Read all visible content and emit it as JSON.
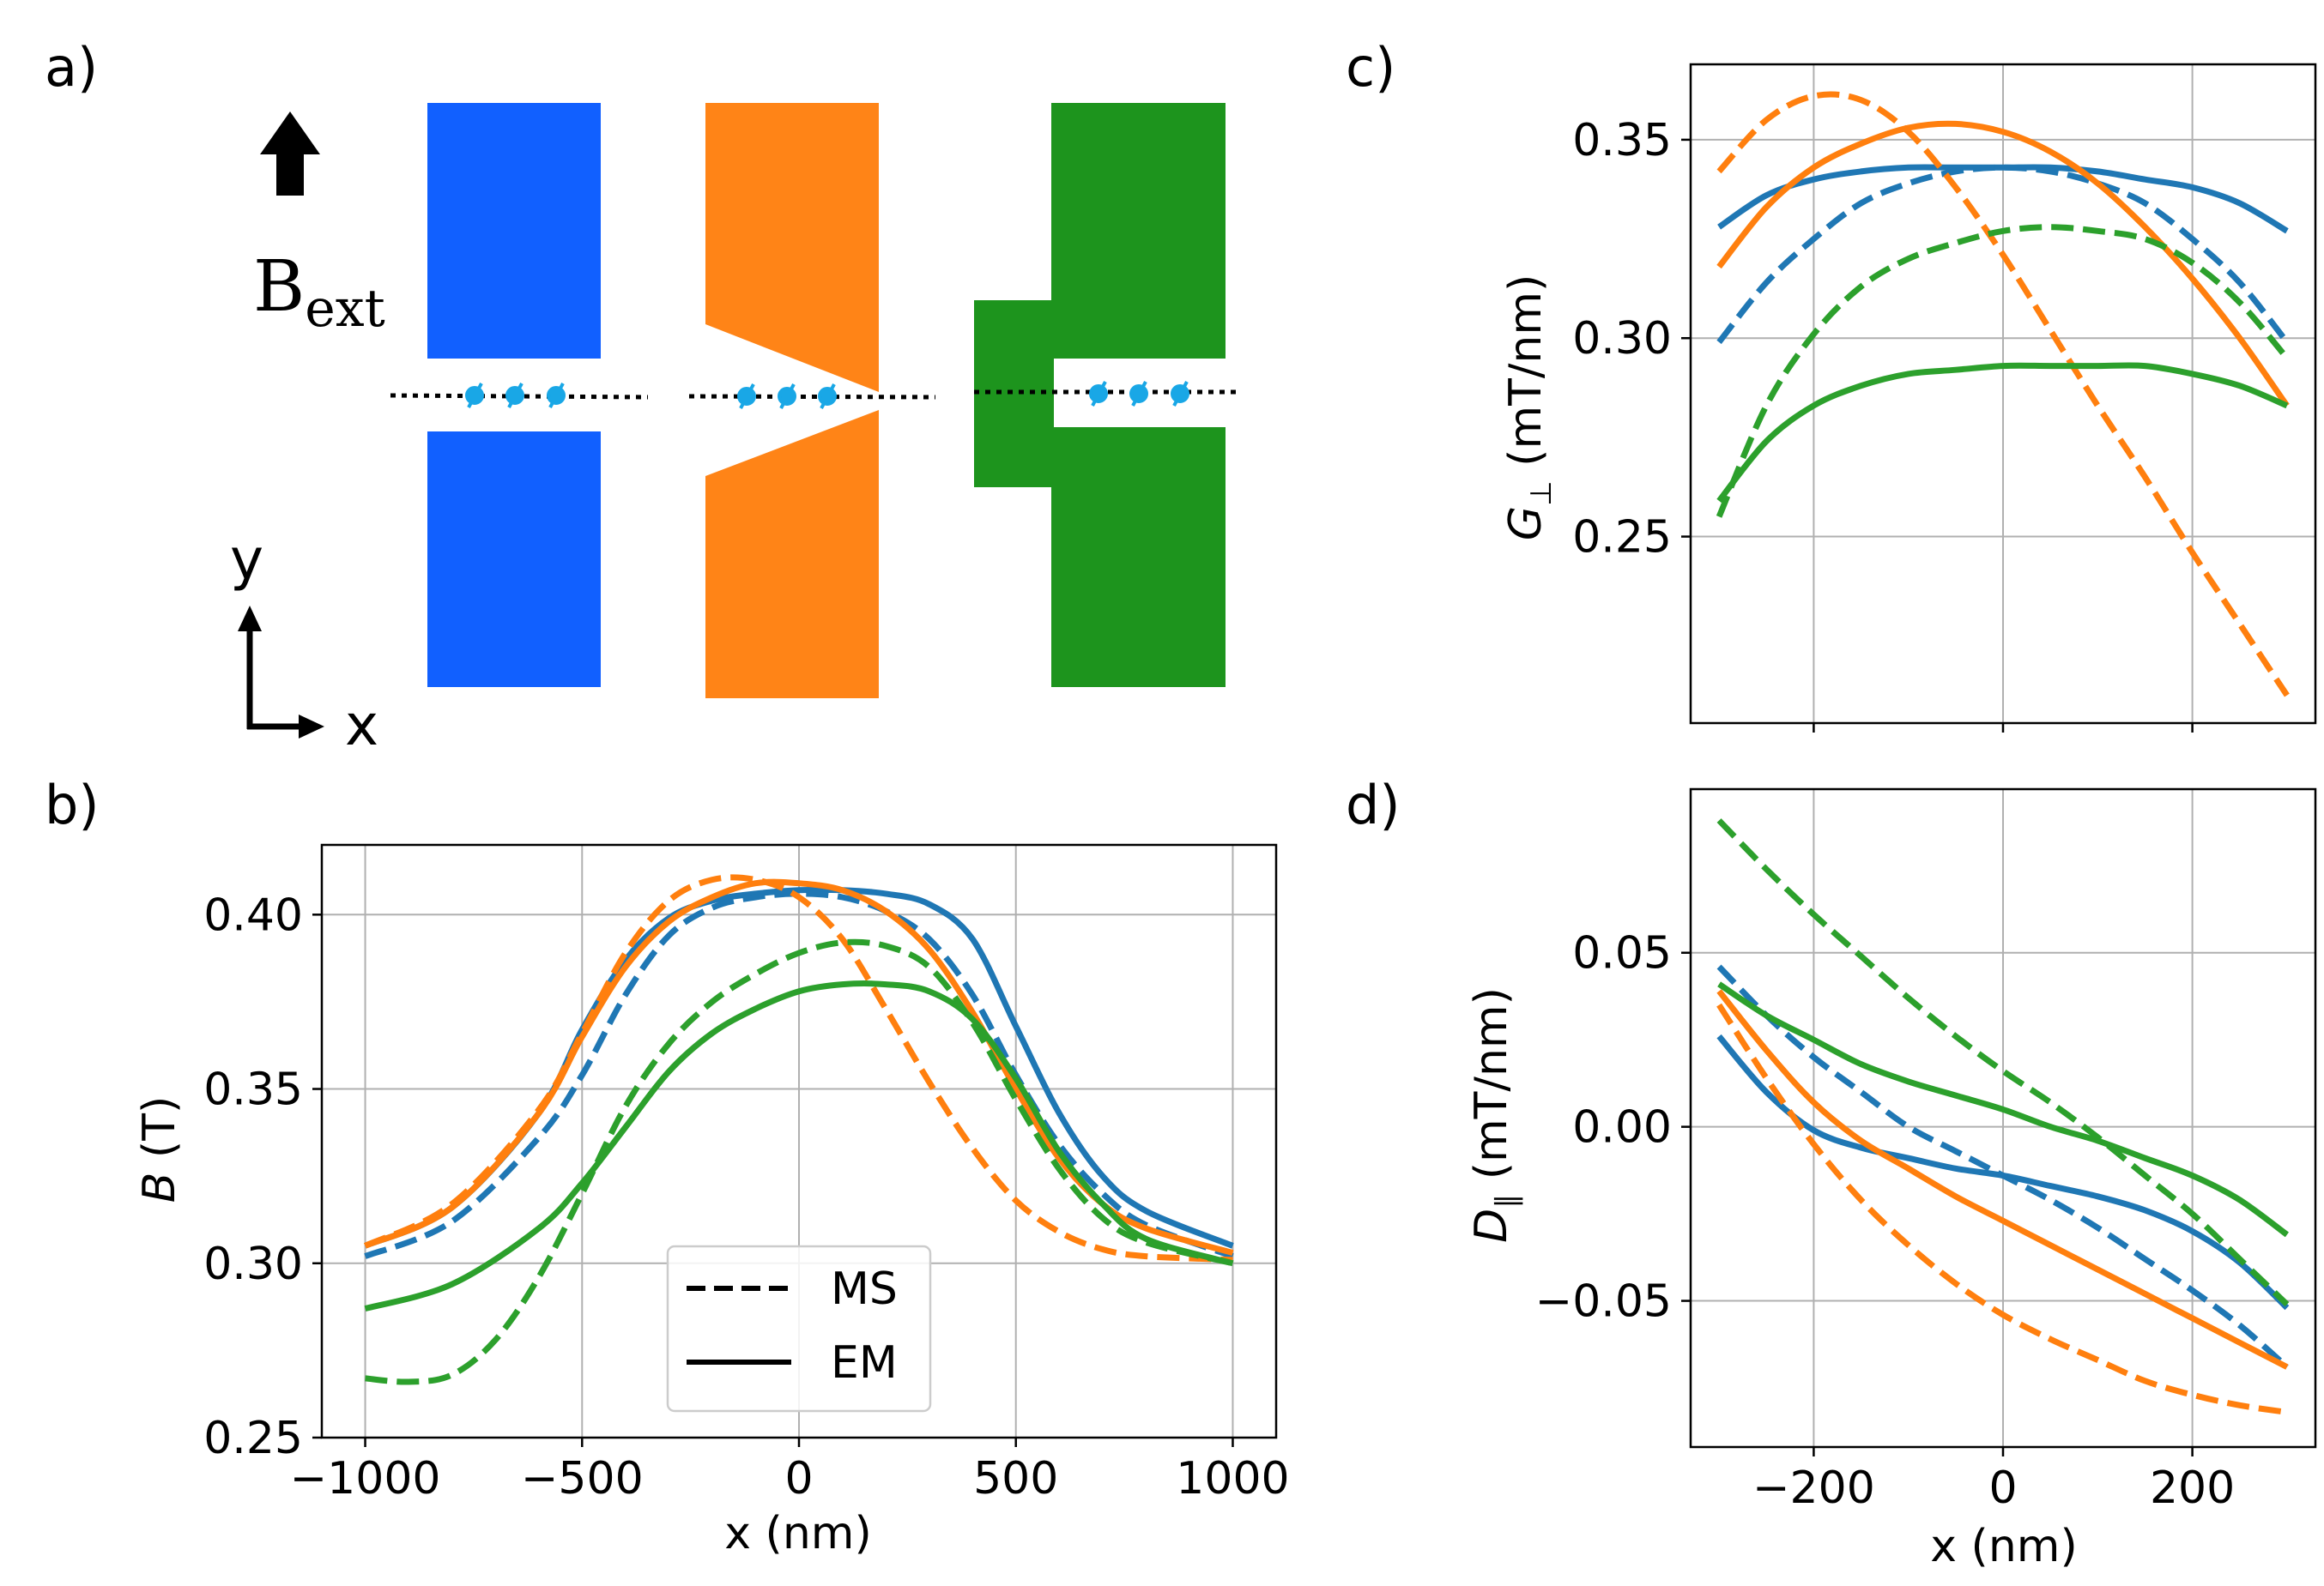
{
  "panels": {
    "a": {
      "label": "a)",
      "field_label": "B",
      "field_subscript": "ext",
      "axis_y": "y",
      "axis_x": "x"
    },
    "b": {
      "label": "b)"
    },
    "c": {
      "label": "c)"
    },
    "d": {
      "label": "d)"
    }
  },
  "colors": {
    "blue": "#1f77b4",
    "orange": "#ff7f0e",
    "green": "#2ca02c",
    "magnet_blue": "#1160ff",
    "magnet_orange": "#ff8417",
    "magnet_green": "#1d941d",
    "spin": "#19a7e6"
  },
  "chart_data": [
    {
      "id": "b",
      "type": "line",
      "xlabel": "x (nm)",
      "ylabel_italic": "B",
      "ylabel_rest": " (T)",
      "xlim": [
        -1100,
        1100
      ],
      "ylim": [
        0.25,
        0.42
      ],
      "xticks": [
        -1000,
        -500,
        0,
        500,
        1000
      ],
      "xtick_labels": [
        "−1000",
        "−500",
        "0",
        "500",
        "1000"
      ],
      "yticks": [
        0.25,
        0.3,
        0.35,
        0.4
      ],
      "ytick_labels": [
        "0.25",
        "0.30",
        "0.35",
        "0.40"
      ],
      "legend": {
        "position": "lower-center",
        "entries": [
          {
            "label": "MS",
            "style": "dashed"
          },
          {
            "label": "EM",
            "style": "solid"
          }
        ]
      },
      "series": [
        {
          "name": "blue EM",
          "color": "blue",
          "style": "solid",
          "x": [
            -1000,
            -800,
            -600,
            -500,
            -400,
            -300,
            -200,
            -100,
            0,
            100,
            200,
            300,
            400,
            500,
            600,
            700,
            800,
            1000
          ],
          "y": [
            0.305,
            0.316,
            0.343,
            0.367,
            0.387,
            0.399,
            0.404,
            0.406,
            0.407,
            0.407,
            0.406,
            0.403,
            0.393,
            0.368,
            0.343,
            0.325,
            0.315,
            0.305
          ]
        },
        {
          "name": "blue MS",
          "color": "blue",
          "style": "dashed",
          "x": [
            -1000,
            -800,
            -600,
            -500,
            -400,
            -300,
            -200,
            -100,
            0,
            100,
            200,
            300,
            400,
            500,
            600,
            700,
            800,
            1000
          ],
          "y": [
            0.302,
            0.312,
            0.336,
            0.354,
            0.377,
            0.394,
            0.402,
            0.405,
            0.406,
            0.405,
            0.401,
            0.393,
            0.377,
            0.354,
            0.334,
            0.32,
            0.311,
            0.302
          ]
        },
        {
          "name": "orange EM",
          "color": "orange",
          "style": "solid",
          "x": [
            -1000,
            -800,
            -600,
            -500,
            -400,
            -300,
            -200,
            -100,
            0,
            100,
            200,
            300,
            400,
            500,
            600,
            700,
            800,
            1000
          ],
          "y": [
            0.305,
            0.316,
            0.343,
            0.365,
            0.385,
            0.398,
            0.405,
            0.409,
            0.409,
            0.407,
            0.401,
            0.39,
            0.372,
            0.35,
            0.33,
            0.317,
            0.31,
            0.303
          ]
        },
        {
          "name": "orange MS",
          "color": "orange",
          "style": "dashed",
          "x": [
            -1000,
            -800,
            -600,
            -500,
            -400,
            -300,
            -200,
            -100,
            0,
            100,
            200,
            300,
            400,
            500,
            600,
            700,
            800,
            1000
          ],
          "y": [
            0.305,
            0.317,
            0.344,
            0.366,
            0.389,
            0.404,
            0.41,
            0.41,
            0.405,
            0.393,
            0.373,
            0.352,
            0.333,
            0.318,
            0.309,
            0.304,
            0.302,
            0.301
          ]
        },
        {
          "name": "green EM",
          "color": "green",
          "style": "solid",
          "x": [
            -1000,
            -800,
            -600,
            -500,
            -400,
            -300,
            -200,
            -100,
            0,
            100,
            200,
            300,
            400,
            500,
            600,
            700,
            800,
            1000
          ],
          "y": [
            0.287,
            0.294,
            0.31,
            0.323,
            0.339,
            0.355,
            0.366,
            0.373,
            0.378,
            0.38,
            0.38,
            0.378,
            0.37,
            0.353,
            0.332,
            0.317,
            0.307,
            0.3
          ]
        },
        {
          "name": "green MS",
          "color": "green",
          "style": "dashed",
          "x": [
            -1000,
            -900,
            -800,
            -700,
            -600,
            -500,
            -400,
            -300,
            -200,
            -100,
            0,
            100,
            200,
            300,
            400,
            500,
            600,
            700,
            800,
            1000
          ],
          "y": [
            0.267,
            0.266,
            0.268,
            0.278,
            0.296,
            0.32,
            0.345,
            0.363,
            0.375,
            0.383,
            0.389,
            0.392,
            0.391,
            0.385,
            0.369,
            0.347,
            0.327,
            0.313,
            0.306,
            0.3
          ]
        }
      ]
    },
    {
      "id": "c",
      "type": "line",
      "xlabel": "",
      "ylabel_italic": "G",
      "ylabel_sub": "⊥",
      "ylabel_rest": " (mT/nm)",
      "xlim": [
        -330,
        330
      ],
      "ylim": [
        0.203,
        0.369
      ],
      "xticks": [
        -200,
        0,
        200
      ],
      "yticks": [
        0.25,
        0.3,
        0.35
      ],
      "ytick_labels": [
        "0.25",
        "0.30",
        "0.35"
      ],
      "series": [
        {
          "name": "blue EM",
          "color": "blue",
          "style": "solid",
          "x": [
            -300,
            -250,
            -200,
            -150,
            -100,
            -50,
            0,
            50,
            100,
            150,
            200,
            250,
            300
          ],
          "y": [
            0.328,
            0.336,
            0.34,
            0.342,
            0.343,
            0.343,
            0.343,
            0.343,
            0.342,
            0.34,
            0.338,
            0.334,
            0.327
          ]
        },
        {
          "name": "blue MS",
          "color": "blue",
          "style": "dashed",
          "x": [
            -300,
            -250,
            -200,
            -150,
            -100,
            -50,
            0,
            50,
            100,
            150,
            200,
            250,
            300
          ],
          "y": [
            0.299,
            0.314,
            0.325,
            0.334,
            0.339,
            0.342,
            0.343,
            0.342,
            0.339,
            0.334,
            0.325,
            0.314,
            0.299
          ]
        },
        {
          "name": "orange EM",
          "color": "orange",
          "style": "solid",
          "x": [
            -300,
            -250,
            -200,
            -150,
            -100,
            -50,
            0,
            50,
            100,
            150,
            200,
            250,
            300
          ],
          "y": [
            0.318,
            0.333,
            0.343,
            0.349,
            0.353,
            0.354,
            0.352,
            0.347,
            0.339,
            0.328,
            0.315,
            0.3,
            0.283
          ]
        },
        {
          "name": "orange MS",
          "color": "orange",
          "style": "dashed",
          "x": [
            -300,
            -250,
            -200,
            -150,
            -100,
            -50,
            0,
            50,
            100,
            150,
            200,
            250,
            300
          ],
          "y": [
            0.342,
            0.355,
            0.361,
            0.36,
            0.352,
            0.338,
            0.321,
            0.302,
            0.283,
            0.265,
            0.246,
            0.228,
            0.21
          ]
        },
        {
          "name": "green EM",
          "color": "green",
          "style": "solid",
          "x": [
            -300,
            -250,
            -200,
            -150,
            -100,
            -50,
            0,
            50,
            100,
            150,
            200,
            250,
            300
          ],
          "y": [
            0.259,
            0.274,
            0.283,
            0.288,
            0.291,
            0.292,
            0.293,
            0.293,
            0.293,
            0.293,
            0.291,
            0.288,
            0.283
          ]
        },
        {
          "name": "green MS",
          "color": "green",
          "style": "dashed",
          "x": [
            -300,
            -250,
            -200,
            -150,
            -100,
            -50,
            0,
            50,
            100,
            150,
            200,
            250,
            300
          ],
          "y": [
            0.255,
            0.283,
            0.301,
            0.313,
            0.32,
            0.324,
            0.327,
            0.328,
            0.327,
            0.325,
            0.319,
            0.309,
            0.295
          ]
        }
      ]
    },
    {
      "id": "d",
      "type": "line",
      "xlabel": "x (nm)",
      "ylabel_italic": "D",
      "ylabel_sub": "∥",
      "ylabel_rest": " (mT/nm)",
      "xlim": [
        -330,
        330
      ],
      "ylim": [
        -0.092,
        0.097
      ],
      "xticks": [
        -200,
        0,
        200
      ],
      "xtick_labels": [
        "−200",
        "0",
        "200"
      ],
      "yticks": [
        -0.05,
        0.0,
        0.05
      ],
      "ytick_labels": [
        "−0.05",
        "0.00",
        "0.05"
      ],
      "series": [
        {
          "name": "blue EM",
          "color": "blue",
          "style": "solid",
          "x": [
            -300,
            -250,
            -200,
            -150,
            -100,
            -50,
            0,
            50,
            100,
            150,
            200,
            250,
            300
          ],
          "y": [
            0.026,
            0.01,
            -0.001,
            -0.006,
            -0.009,
            -0.012,
            -0.014,
            -0.017,
            -0.02,
            -0.024,
            -0.03,
            -0.039,
            -0.052
          ]
        },
        {
          "name": "blue MS",
          "color": "blue",
          "style": "dashed",
          "x": [
            -300,
            -250,
            -200,
            -150,
            -100,
            -50,
            0,
            50,
            100,
            150,
            200,
            250,
            300
          ],
          "y": [
            0.046,
            0.032,
            0.02,
            0.01,
            0.0,
            -0.007,
            -0.014,
            -0.021,
            -0.029,
            -0.038,
            -0.047,
            -0.057,
            -0.069
          ]
        },
        {
          "name": "orange EM",
          "color": "orange",
          "style": "solid",
          "x": [
            -300,
            -250,
            -200,
            -150,
            -100,
            -50,
            0,
            50,
            100,
            150,
            200,
            250,
            300
          ],
          "y": [
            0.039,
            0.022,
            0.007,
            -0.004,
            -0.012,
            -0.02,
            -0.027,
            -0.034,
            -0.041,
            -0.048,
            -0.055,
            -0.062,
            -0.069
          ]
        },
        {
          "name": "orange MS",
          "color": "orange",
          "style": "dashed",
          "x": [
            -300,
            -250,
            -200,
            -150,
            -100,
            -50,
            0,
            50,
            100,
            150,
            200,
            250,
            300
          ],
          "y": [
            0.035,
            0.014,
            -0.005,
            -0.021,
            -0.034,
            -0.045,
            -0.054,
            -0.061,
            -0.067,
            -0.073,
            -0.077,
            -0.08,
            -0.082
          ]
        },
        {
          "name": "green EM",
          "color": "green",
          "style": "solid",
          "x": [
            -300,
            -250,
            -200,
            -150,
            -100,
            -50,
            0,
            50,
            100,
            150,
            200,
            250,
            300
          ],
          "y": [
            0.041,
            0.032,
            0.025,
            0.018,
            0.013,
            0.009,
            0.005,
            0.0,
            -0.004,
            -0.009,
            -0.014,
            -0.021,
            -0.031
          ]
        },
        {
          "name": "green MS",
          "color": "green",
          "style": "dashed",
          "x": [
            -300,
            -250,
            -200,
            -150,
            -100,
            -50,
            0,
            50,
            100,
            150,
            200,
            250,
            300
          ],
          "y": [
            0.088,
            0.074,
            0.061,
            0.049,
            0.037,
            0.026,
            0.016,
            0.007,
            -0.003,
            -0.014,
            -0.025,
            -0.038,
            -0.051
          ]
        }
      ]
    }
  ]
}
